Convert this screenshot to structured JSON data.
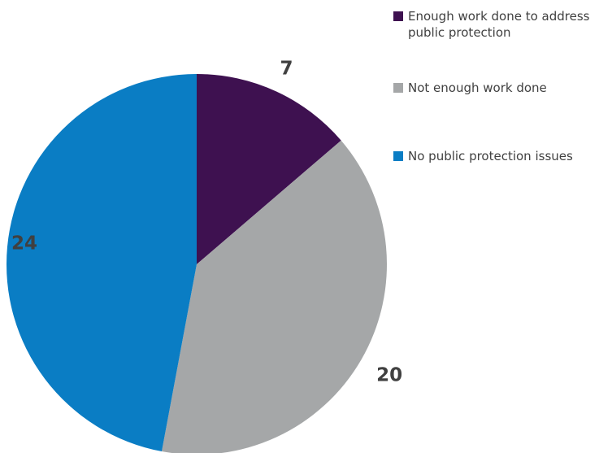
{
  "chart_data": {
    "type": "pie",
    "categories": [
      "Enough work done to address public protection",
      "Not enough work done",
      "No public protection issues"
    ],
    "values": [
      7,
      20,
      24
    ],
    "data_labels": [
      "7",
      "20",
      "24"
    ],
    "colors": [
      "#3e1150",
      "#a5a7a8",
      "#0a7dc4"
    ],
    "legend_placement": "top-right",
    "start_angle": "12 o'clock",
    "direction": "clockwise"
  }
}
